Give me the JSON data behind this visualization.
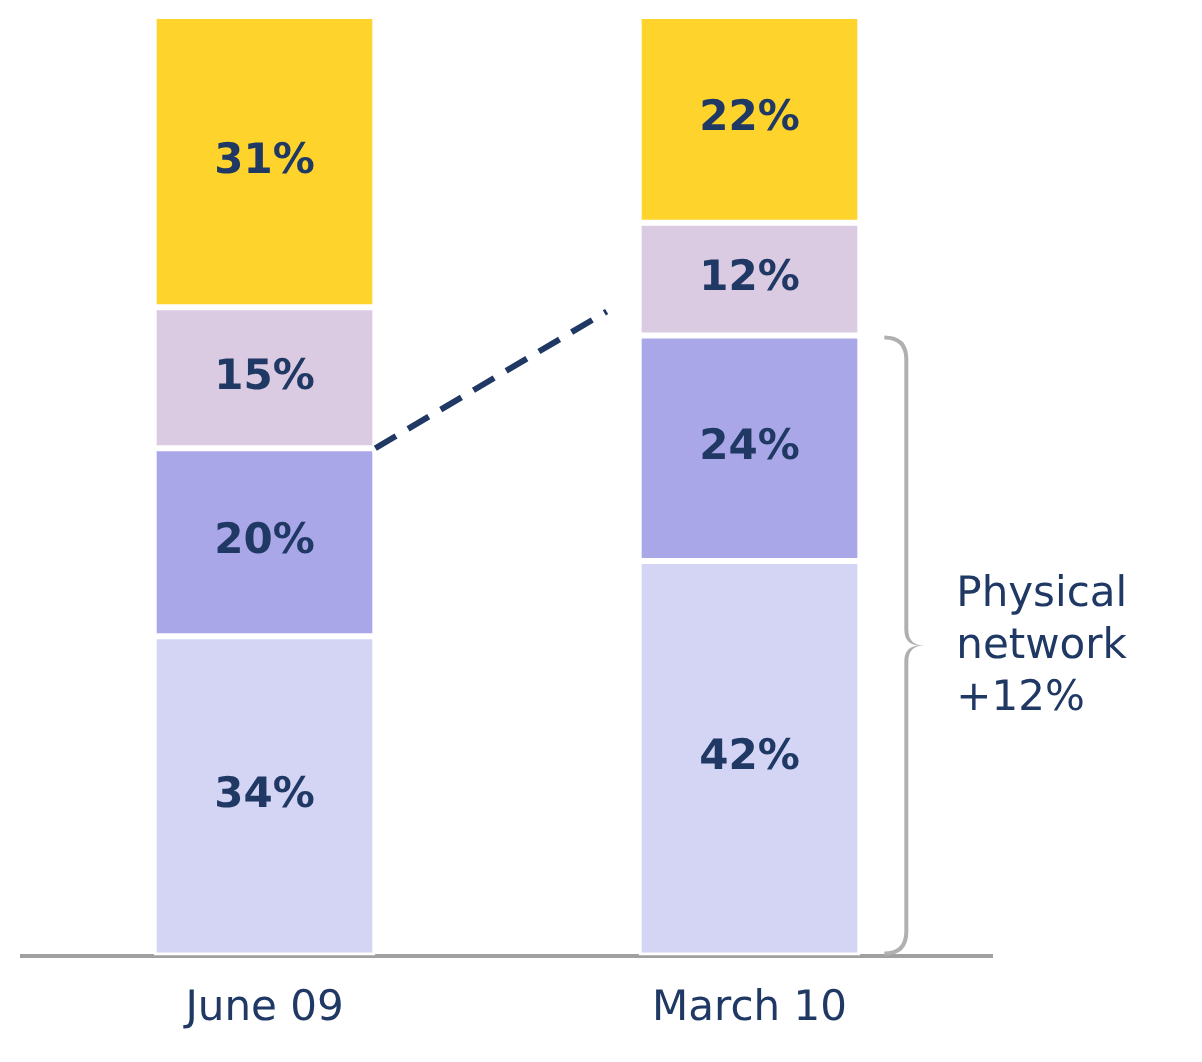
{
  "chart_data": {
    "type": "bar",
    "stacked": true,
    "tick_labels": "x",
    "grid": false,
    "legend": false,
    "categories": [
      "June 09",
      "March 10"
    ],
    "series": [
      {
        "color": "#d4d4f4",
        "values": [
          34,
          42
        ],
        "value_labels": [
          "34%",
          "42%"
        ]
      },
      {
        "color": "#a9a7e7",
        "values": [
          20,
          24
        ],
        "value_labels": [
          "20%",
          "24%"
        ]
      },
      {
        "color": "#dacae2",
        "values": [
          15,
          12
        ],
        "value_labels": [
          "15%",
          "12%"
        ]
      },
      {
        "color": "#fed42c",
        "values": [
          31,
          22
        ],
        "value_labels": [
          "31%",
          "22%"
        ]
      }
    ],
    "annotations": [
      "Physical\nnetwork\n+12%"
    ]
  }
}
